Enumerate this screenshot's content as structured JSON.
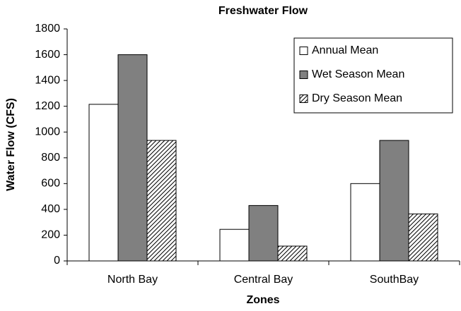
{
  "chart_data": {
    "type": "bar",
    "title": "Freshwater Flow",
    "x_label": "Zones",
    "y_label": "Water Flow (CFS)",
    "categories": [
      "North Bay",
      "Central Bay",
      "SouthBay"
    ],
    "series": [
      {
        "name": "Annual Mean",
        "color": "#ffffff",
        "hatch": false,
        "values": [
          1215,
          245,
          600
        ]
      },
      {
        "name": "Wet Season Mean",
        "color": "#808080",
        "hatch": false,
        "values": [
          1600,
          430,
          935
        ]
      },
      {
        "name": "Dry Season Mean",
        "color": "#ffffff",
        "hatch": true,
        "values": [
          935,
          115,
          365
        ]
      }
    ],
    "ylim": [
      0,
      1800
    ],
    "yticks": [
      0,
      200,
      400,
      600,
      800,
      1000,
      1200,
      1400,
      1600,
      1800
    ],
    "grid": false,
    "legend": "top-right"
  }
}
